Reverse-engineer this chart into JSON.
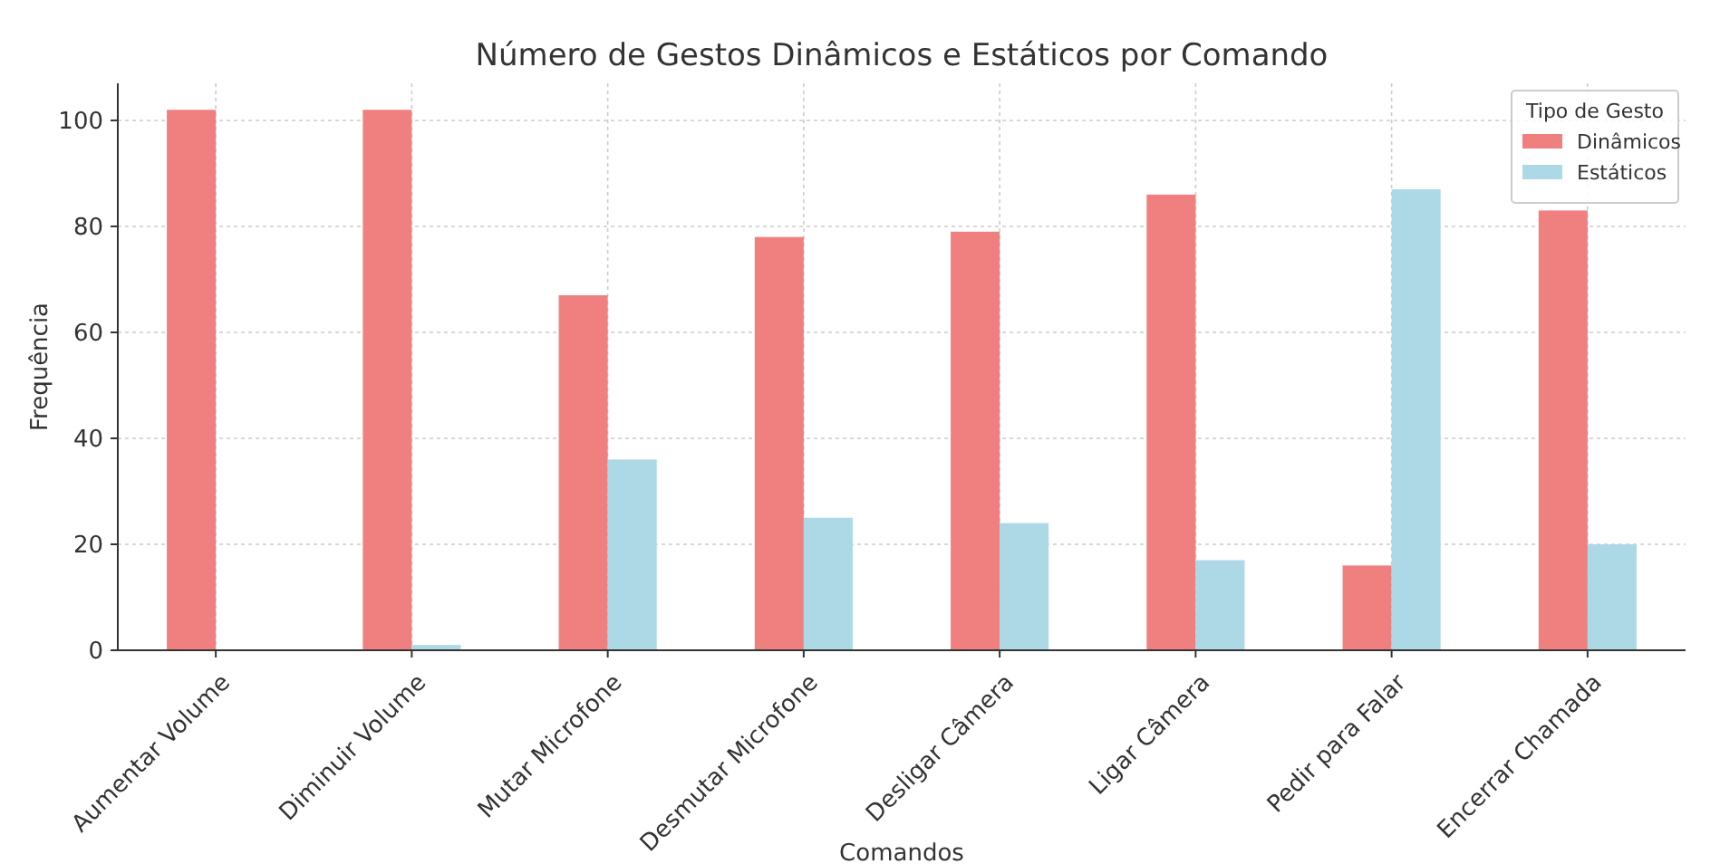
{
  "chart_data": {
    "type": "bar",
    "title": "Número de Gestos Dinâmicos e Estáticos por Comando",
    "xlabel": "Comandos",
    "ylabel": "Frequência",
    "legend_title": "Tipo de Gesto",
    "legend": "top right",
    "grid": true,
    "categories": [
      "Aumentar Volume",
      "Diminuir Volume",
      "Mutar Microfone",
      "Desmutar Microfone",
      "Desligar Câmera",
      "Ligar Câmera",
      "Pedir para Falar",
      "Encerrar Chamada"
    ],
    "series": [
      {
        "name": "Dinâmicos",
        "color": "#f08080",
        "values": [
          102,
          102,
          67,
          78,
          79,
          86,
          16,
          83
        ]
      },
      {
        "name": "Estáticos",
        "color": "#add8e6",
        "values": [
          0,
          1,
          36,
          25,
          24,
          17,
          87,
          20
        ]
      }
    ],
    "ylim": [
      0,
      107
    ],
    "yticks": [
      0,
      20,
      40,
      60,
      80,
      100
    ]
  }
}
